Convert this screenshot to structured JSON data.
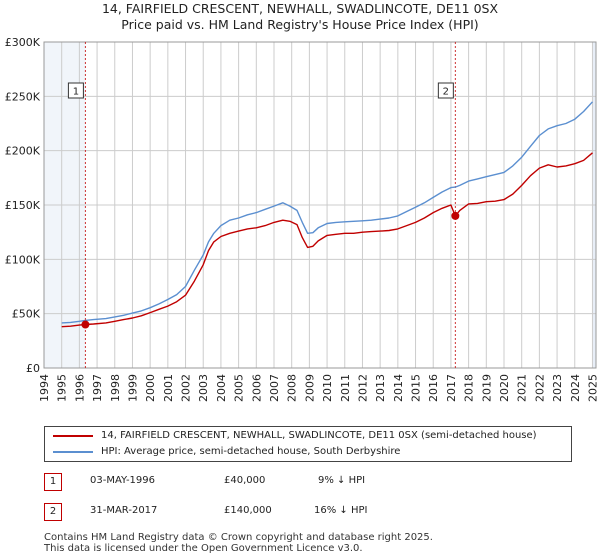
{
  "title_line1": "14, FAIRFIELD CRESCENT, NEWHALL, SWADLINCOTE, DE11 0SX",
  "title_line2": "Price paid vs. HM Land Registry's House Price Index (HPI)",
  "colors": {
    "price": "#c00000",
    "hpi": "#5b8fd0",
    "grid": "#cccccc",
    "shade": "#e8eef7"
  },
  "chart_data": {
    "type": "line",
    "xlim": [
      1994,
      2025.2
    ],
    "ylim": [
      0,
      300000
    ],
    "y_ticks": [
      0,
      50000,
      100000,
      150000,
      200000,
      250000,
      300000
    ],
    "y_tick_labels": [
      "£0",
      "£50K",
      "£100K",
      "£150K",
      "£200K",
      "£250K",
      "£300K"
    ],
    "x_tick_labels": [
      "1994",
      "1995",
      "1996",
      "1997",
      "1998",
      "1999",
      "2000",
      "2001",
      "2002",
      "2003",
      "2004",
      "2005",
      "2006",
      "2007",
      "2008",
      "2009",
      "2010",
      "2011",
      "2012",
      "2013",
      "2014",
      "2015",
      "2016",
      "2017",
      "2018",
      "2019",
      "2020",
      "2021",
      "2022",
      "2023",
      "2024",
      "2025"
    ],
    "series": [
      {
        "name": "14, FAIRFIELD CRESCENT, NEWHALL, SWADLINCOTE, DE11 0SX (semi-detached house)",
        "x": [
          1995.0,
          1995.5,
          1996.0,
          1996.34,
          1996.8,
          1997.5,
          1998.0,
          1998.5,
          1999.0,
          1999.5,
          2000.0,
          2000.5,
          2001.0,
          2001.5,
          2002.0,
          2002.5,
          2003.0,
          2003.3,
          2003.6,
          2004.0,
          2004.5,
          2005.0,
          2005.5,
          2006.0,
          2006.5,
          2007.0,
          2007.5,
          2007.9,
          2008.3,
          2008.6,
          2008.9,
          2009.2,
          2009.5,
          2010.0,
          2010.5,
          2011.0,
          2011.5,
          2012.0,
          2012.5,
          2013.0,
          2013.5,
          2014.0,
          2014.5,
          2015.0,
          2015.5,
          2016.0,
          2016.5,
          2017.0,
          2017.25,
          2017.5,
          2018.0,
          2018.5,
          2019.0,
          2019.5,
          2020.0,
          2020.5,
          2021.0,
          2021.5,
          2022.0,
          2022.5,
          2023.0,
          2023.5,
          2024.0,
          2024.5,
          2025.0
        ],
        "y": [
          38000,
          38500,
          39500,
          40000,
          40500,
          41500,
          43000,
          44500,
          46000,
          48000,
          51000,
          54000,
          57000,
          61000,
          67000,
          80000,
          95000,
          108000,
          116000,
          121000,
          124000,
          126000,
          128000,
          129000,
          131000,
          134000,
          136000,
          135000,
          132000,
          120000,
          111000,
          112000,
          117000,
          122000,
          123000,
          124000,
          124000,
          125000,
          125500,
          126000,
          126500,
          128000,
          131000,
          134000,
          138000,
          143000,
          147000,
          150000,
          140000,
          145000,
          151000,
          151500,
          153000,
          153500,
          155000,
          160000,
          168000,
          177000,
          184000,
          187000,
          185000,
          186000,
          188000,
          191000,
          198000
        ]
      },
      {
        "name": "HPI: Average price, semi-detached house, South Derbyshire",
        "x": [
          1995.0,
          1995.5,
          1996.0,
          1996.34,
          1996.8,
          1997.5,
          1998.0,
          1998.5,
          1999.0,
          1999.5,
          2000.0,
          2000.5,
          2001.0,
          2001.5,
          2002.0,
          2002.5,
          2003.0,
          2003.3,
          2003.6,
          2004.0,
          2004.5,
          2005.0,
          2005.5,
          2006.0,
          2006.5,
          2007.0,
          2007.5,
          2007.9,
          2008.3,
          2008.6,
          2008.9,
          2009.2,
          2009.5,
          2010.0,
          2010.5,
          2011.0,
          2011.5,
          2012.0,
          2012.5,
          2013.0,
          2013.5,
          2014.0,
          2014.5,
          2015.0,
          2015.5,
          2016.0,
          2016.5,
          2017.0,
          2017.25,
          2017.5,
          2018.0,
          2018.5,
          2019.0,
          2019.5,
          2020.0,
          2020.5,
          2021.0,
          2021.5,
          2022.0,
          2022.5,
          2023.0,
          2023.5,
          2024.0,
          2024.5,
          2025.0
        ],
        "y": [
          41500,
          42000,
          43000,
          43800,
          44500,
          45500,
          47000,
          48500,
          50500,
          52500,
          55500,
          59000,
          63000,
          67500,
          75000,
          90000,
          104000,
          116000,
          124000,
          131000,
          136000,
          138000,
          141000,
          143000,
          146000,
          149000,
          152000,
          149000,
          145000,
          134000,
          124000,
          124500,
          129000,
          133000,
          134000,
          134500,
          135000,
          135500,
          136000,
          137000,
          138000,
          140000,
          144000,
          148000,
          152000,
          157000,
          162000,
          166000,
          166500,
          168000,
          172000,
          174000,
          176000,
          178000,
          180000,
          186000,
          194000,
          204000,
          214000,
          220000,
          223000,
          225000,
          229000,
          236000,
          245000
        ]
      }
    ],
    "sale_markers": [
      {
        "id": "1",
        "x": 1996.34,
        "y": 40000
      },
      {
        "id": "2",
        "x": 2017.25,
        "y": 140000
      }
    ]
  },
  "legend": {
    "price_label": "14, FAIRFIELD CRESCENT, NEWHALL, SWADLINCOTE, DE11 0SX (semi-detached house)",
    "hpi_label": "HPI: Average price, semi-detached house, South Derbyshire"
  },
  "transactions": [
    {
      "id": "1",
      "date": "03-MAY-1996",
      "price": "£40,000",
      "hpi_diff": "9% ↓ HPI"
    },
    {
      "id": "2",
      "date": "31-MAR-2017",
      "price": "£140,000",
      "hpi_diff": "16% ↓ HPI"
    }
  ],
  "footer_line1": "Contains HM Land Registry data © Crown copyright and database right 2025.",
  "footer_line2": "This data is licensed under the Open Government Licence v3.0."
}
